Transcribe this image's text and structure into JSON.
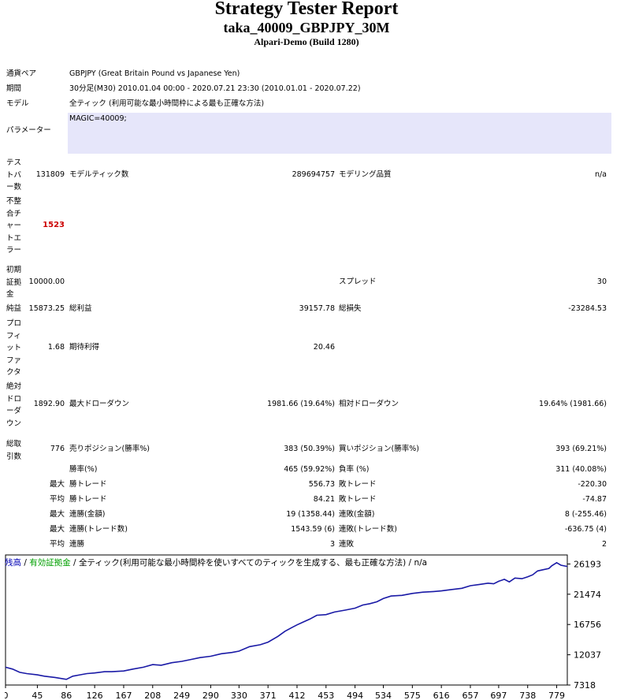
{
  "header": {
    "title": "Strategy Tester Report",
    "subtitle": "taka_40009_GBPJPY_30M",
    "build": "Alpari-Demo (Build 1280)"
  },
  "info": {
    "symbol_label": "通貨ペア",
    "symbol_value": "GBPJPY (Great Britain Pound vs Japanese Yen)",
    "period_label": "期間",
    "period_value": "30分足(M30) 2010.01.04 00:00 - 2020.07.21 23:30 (2010.01.01 - 2020.07.22)",
    "model_label": "モデル",
    "model_value": "全ティック (利用可能な最小時間枠による最も正確な方法)",
    "params_label": "パラメーター",
    "params_value": "MAGIC=40009;"
  },
  "stats": {
    "bars_label": "テストバー数",
    "bars_value": "131809",
    "ticks_label": "モデルティック数",
    "ticks_value": "289694757",
    "quality_label": "モデリング品質",
    "quality_value": "n/a",
    "mismatch_label": "不整合チャートエラー",
    "mismatch_value": "1523",
    "deposit_label": "初期証拠金",
    "deposit_value": "10000.00",
    "spread_label": "スプレッド",
    "spread_value": "30",
    "net_label": "純益",
    "net_value": "15873.25",
    "gross_profit_label": "総利益",
    "gross_profit_value": "39157.78",
    "gross_loss_label": "総損失",
    "gross_loss_value": "-23284.53",
    "pf_label": "プロフィットファクタ",
    "pf_value": "1.68",
    "payoff_label": "期待利得",
    "payoff_value": "20.46",
    "abs_dd_label": "絶対ドローダウン",
    "abs_dd_value": "1892.90",
    "max_dd_label": "最大ドローダウン",
    "max_dd_value": "1981.66 (19.64%)",
    "rel_dd_label": "相対ドローダウン",
    "rel_dd_value": "19.64% (1981.66)",
    "total_label": "総取引数",
    "total_value": "776",
    "short_label": "売りポジション(勝率%)",
    "short_value": "383 (50.39%)",
    "long_label": "買いポジション(勝率%)",
    "long_value": "393 (69.21%)",
    "win_label": "勝率(%)",
    "win_value": "465 (59.92%)",
    "loss_label": "負率 (%)",
    "loss_value": "311 (40.08%)",
    "max_label": "最大",
    "avg_label": "平均",
    "largest_win_label": "勝トレード",
    "largest_win_value": "556.73",
    "largest_loss_label": "敗トレード",
    "largest_loss_value": "-220.30",
    "avg_win_label": "勝トレード",
    "avg_win_value": "84.21",
    "avg_loss_label": "敗トレード",
    "avg_loss_value": "-74.87",
    "consec_wins_money_label": "連勝(金額)",
    "consec_wins_money_value": "19 (1358.44)",
    "consec_losses_money_label": "連敗(金額)",
    "consec_losses_money_value": "8 (-255.46)",
    "consec_profit_label": "連勝(トレード数)",
    "consec_profit_value": "1543.59 (6)",
    "consec_loss_label": "連敗(トレード数)",
    "consec_loss_value": "-636.75 (4)",
    "avg_consec_wins_label": "連勝",
    "avg_consec_wins_value": "3",
    "avg_consec_losses_label": "連敗",
    "avg_consec_losses_value": "2"
  },
  "legend": {
    "balance": "残高",
    "sep1": " / ",
    "equity": "有効証拠金",
    "sep2": " / ",
    "model": "全ティック(利用可能な最小時間枠を使いすべてのティックを生成する、最も正確な方法)",
    "sep3": " / ",
    "quality": "n/a"
  },
  "colors": {
    "balance": "#0000b4",
    "equity": "#00a000",
    "line": "#1a1aa6",
    "param_bg": "#e6e6fa",
    "error": "#cc0000"
  },
  "chart_data": {
    "type": "line",
    "x_ticks": [
      0,
      45,
      86,
      126,
      167,
      208,
      249,
      290,
      330,
      371,
      412,
      453,
      494,
      534,
      575,
      616,
      657,
      697,
      738,
      779
    ],
    "y_ticks": [
      7318,
      12037,
      16756,
      21474,
      26193
    ],
    "xlim": [
      0,
      794
    ],
    "ylim": [
      7318,
      27600
    ],
    "series": [
      {
        "x": [
          0,
          10,
          20,
          30,
          45,
          55,
          70,
          86,
          95,
          105,
          115,
          126,
          140,
          150,
          167,
          180,
          195,
          208,
          220,
          235,
          249,
          262,
          275,
          290,
          305,
          320,
          330,
          345,
          360,
          371,
          385,
          395,
          405,
          412,
          420,
          430,
          440,
          453,
          465,
          480,
          494,
          505,
          515,
          525,
          534,
          545,
          560,
          575,
          590,
          605,
          616,
          630,
          645,
          657,
          670,
          682,
          690,
          697,
          705,
          712,
          720,
          730,
          738,
          745,
          752,
          760,
          768,
          772,
          779,
          785,
          794
        ],
        "y": [
          10100,
          9800,
          9300,
          9100,
          8900,
          8700,
          8500,
          8200,
          8700,
          8900,
          9100,
          9200,
          9400,
          9400,
          9500,
          9800,
          10100,
          10500,
          10400,
          10800,
          11000,
          11300,
          11600,
          11800,
          12200,
          12400,
          12600,
          13300,
          13600,
          14000,
          14900,
          15700,
          16300,
          16700,
          17100,
          17600,
          18200,
          18300,
          18700,
          19000,
          19300,
          19800,
          20000,
          20300,
          20800,
          21200,
          21300,
          21600,
          21800,
          21900,
          22000,
          22200,
          22400,
          22800,
          23000,
          23200,
          23100,
          23500,
          23800,
          23400,
          24000,
          23900,
          24200,
          24500,
          25100,
          25300,
          25500,
          25900,
          26400,
          26000,
          25800
        ]
      }
    ]
  }
}
